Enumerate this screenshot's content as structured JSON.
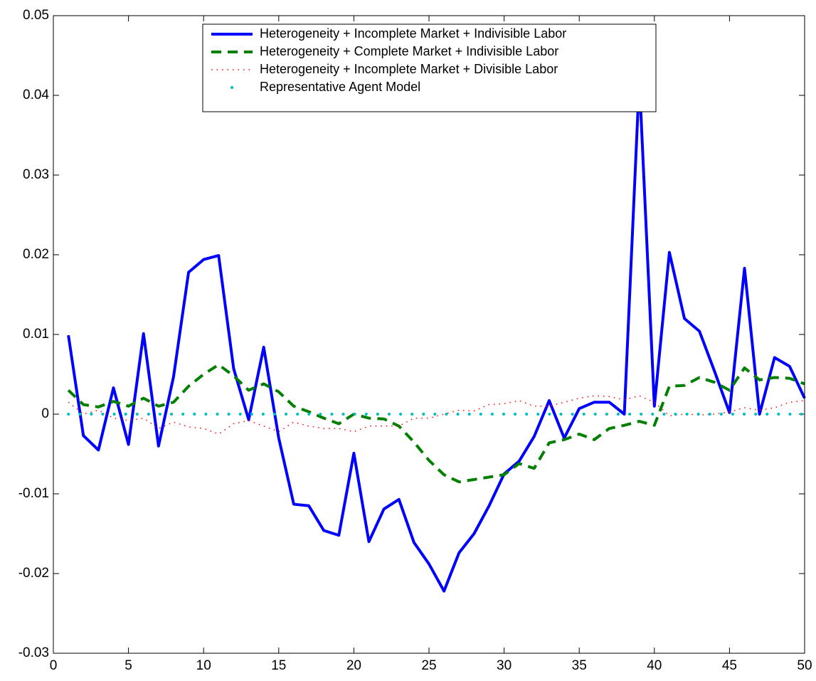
{
  "chart_data": {
    "type": "line",
    "x": [
      1,
      2,
      3,
      4,
      5,
      6,
      7,
      8,
      9,
      10,
      11,
      12,
      13,
      14,
      15,
      16,
      17,
      18,
      19,
      20,
      21,
      22,
      23,
      24,
      25,
      26,
      27,
      28,
      29,
      30,
      31,
      32,
      33,
      34,
      35,
      36,
      37,
      38,
      39,
      40,
      41,
      42,
      43,
      44,
      45,
      46,
      47,
      48,
      49,
      50
    ],
    "series": [
      {
        "name": "Heterogeneity + Incomplete Market + Indivisible Labor",
        "color": "#0000ff",
        "style": "solid",
        "values": [
          0.0099,
          -0.0027,
          -0.0045,
          0.0033,
          -0.0038,
          0.0101,
          -0.004,
          0.0047,
          0.0178,
          0.0194,
          0.0199,
          0.0057,
          -0.0007,
          0.0084,
          -0.003,
          -0.0113,
          -0.0115,
          -0.0146,
          -0.0152,
          -0.0049,
          -0.016,
          -0.0119,
          -0.0107,
          -0.0161,
          -0.0188,
          -0.0222,
          -0.0174,
          -0.015,
          -0.0115,
          -0.0075,
          -0.0059,
          -0.0028,
          0.0017,
          -0.003,
          0.0007,
          0.0015,
          0.0015,
          0,
          0.042,
          0.001,
          0.0203,
          0.012,
          0.0104,
          0.0054,
          0.0002,
          0.0183,
          0,
          0.0071,
          0.006,
          0.002
        ]
      },
      {
        "name": "Heterogeneity + Complete Market + Indivisible Labor",
        "color": "#007f00",
        "style": "dashed",
        "values": [
          0.003,
          0.0012,
          0.0009,
          0.0016,
          0.001,
          0.002,
          0.001,
          0.0015,
          0.0035,
          0.005,
          0.0062,
          0.0048,
          0.003,
          0.0038,
          0.0028,
          0.001,
          0.0003,
          -0.0005,
          -0.0012,
          0,
          -0.0005,
          -0.0006,
          -0.0015,
          -0.0035,
          -0.0058,
          -0.0076,
          -0.0085,
          -0.0082,
          -0.0079,
          -0.0076,
          -0.0062,
          -0.0068,
          -0.0036,
          -0.0032,
          -0.0025,
          -0.0032,
          -0.0018,
          -0.0014,
          -0.0009,
          -0.0014,
          0.0035,
          0.0036,
          0.0046,
          0.004,
          0.003,
          0.0058,
          0.0043,
          0.0046,
          0.0045,
          0.0038
        ]
      },
      {
        "name": "Heterogeneity + Incomplete Market + Divisible Labor",
        "color": "#ff0000",
        "style": "dotted",
        "values": [
          0.0015,
          0,
          0.0005,
          -0.0005,
          -0.0008,
          -0.0005,
          -0.0018,
          -0.001,
          -0.0016,
          -0.0018,
          -0.0025,
          -0.0012,
          -0.0008,
          -0.0015,
          -0.0022,
          -0.001,
          -0.0015,
          -0.0018,
          -0.0018,
          -0.0022,
          -0.0015,
          -0.0015,
          -0.0015,
          -0.0005,
          -0.0005,
          0,
          0.0005,
          0.0004,
          0.0012,
          0.0013,
          0.0017,
          0.001,
          0.001,
          0.0015,
          0.002,
          0.0023,
          0.0022,
          0.0018,
          0.0023,
          0.0015,
          -0.0002,
          0,
          -0.0001,
          0,
          0.0003,
          0.0008,
          0.0005,
          0.0008,
          0.0015,
          0.0017
        ]
      },
      {
        "name": "Representative Agent Model",
        "color": "#00bfbf",
        "style": "points",
        "values": [
          0,
          0,
          0,
          0,
          0,
          0,
          0,
          0,
          0,
          0,
          0,
          0,
          0,
          0,
          0,
          0,
          0,
          0,
          0,
          0,
          0,
          0,
          0,
          0,
          0,
          0,
          0,
          0,
          0,
          0,
          0,
          0,
          0,
          0,
          0,
          0,
          0,
          0,
          0,
          0,
          0,
          0,
          0,
          0,
          0,
          0,
          0,
          0,
          0,
          0
        ]
      }
    ],
    "xlim": [
      0,
      50
    ],
    "xticks": [
      0,
      5,
      10,
      15,
      20,
      25,
      30,
      35,
      40,
      45,
      50
    ],
    "ylim": [
      -0.03,
      0.05
    ],
    "yticks": [
      -0.03,
      -0.02,
      -0.01,
      0,
      0.01,
      0.02,
      0.03,
      0.04,
      0.05
    ],
    "grid": false,
    "legend": "upper center"
  }
}
